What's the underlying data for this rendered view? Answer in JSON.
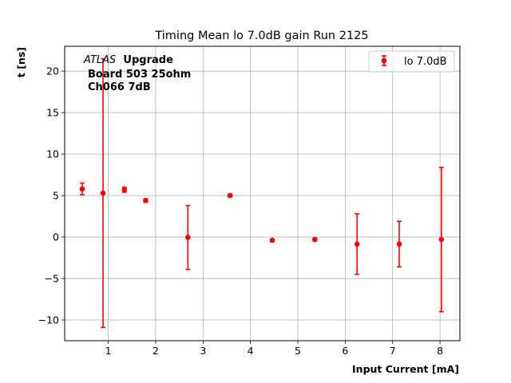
{
  "chart_data": {
    "type": "scatter",
    "title": "Timing Mean lo 7.0dB gain Run 2125",
    "xlabel": "Input Current [mA]",
    "ylabel": "t [ns]",
    "xlim": [
      0.08,
      8.42
    ],
    "ylim": [
      -12.5,
      23.0
    ],
    "xticks": [
      1,
      2,
      3,
      4,
      5,
      6,
      7,
      8
    ],
    "yticks": [
      -10,
      -5,
      0,
      5,
      10,
      15,
      20
    ],
    "grid": true,
    "legend_position": "top-right",
    "annotation": {
      "atlas": "ATLAS",
      "upgrade": "Upgrade",
      "line2": "Board 503 25ohm",
      "line3": "Ch066 7dB"
    },
    "series": [
      {
        "name": "lo 7.0dB",
        "color": "#ff0000",
        "points": [
          {
            "x": 0.45,
            "y": 5.8,
            "yerr": 0.7
          },
          {
            "x": 0.89,
            "y": 5.3,
            "yerr": 16.2
          },
          {
            "x": 1.34,
            "y": 5.7,
            "yerr": 0.3
          },
          {
            "x": 1.79,
            "y": 4.4,
            "yerr": 0.2
          },
          {
            "x": 2.68,
            "y": -0.05,
            "yerr": 3.85
          },
          {
            "x": 3.57,
            "y": 5.0,
            "yerr": 0.15
          },
          {
            "x": 4.46,
            "y": -0.4,
            "yerr": 0.15
          },
          {
            "x": 5.36,
            "y": -0.3,
            "yerr": 0.15
          },
          {
            "x": 6.25,
            "y": -0.85,
            "yerr": 3.65
          },
          {
            "x": 7.14,
            "y": -0.85,
            "yerr": 2.75
          },
          {
            "x": 8.03,
            "y": -0.3,
            "yerr": 8.7
          }
        ]
      }
    ]
  }
}
